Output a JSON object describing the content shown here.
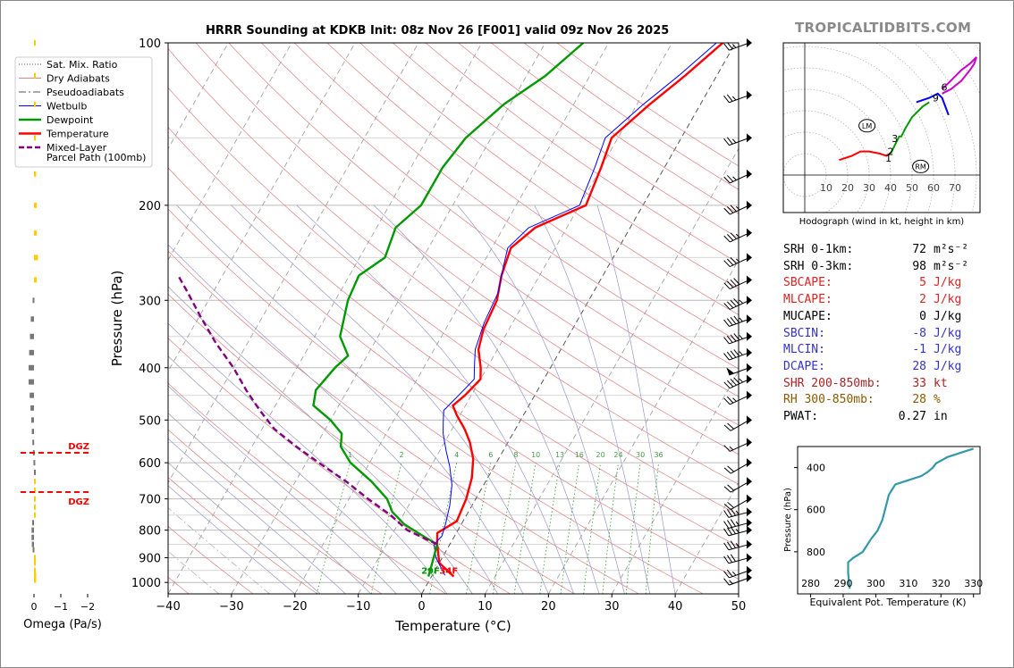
{
  "brand": "TROPICALTIDBITS.COM",
  "title": "HRRR Sounding at KDKB Init: 08z Nov 26 [F001] valid 09z Nov 26 2025",
  "colors": {
    "temperature": "#ff0000",
    "dewpoint": "#009900",
    "wetbulb": "#0000ff",
    "parcel": "#800080",
    "dry_adiabat": "#e08080",
    "moist_adiabat": "#9999cc",
    "mixing_ratio": "#339933",
    "isotherm": "#888888",
    "omega_up": "#ffcc00",
    "omega_down": "#777777",
    "theta_e": "#3399aa",
    "text_red": "#dd2222",
    "text_blue": "#3333cc",
    "text_brown": "#8a5a00"
  },
  "legend": [
    {
      "label": "Sat. Mix. Ratio",
      "style": "dotted",
      "color": "#555555"
    },
    {
      "label": "Dry Adiabats",
      "style": "solid",
      "color": "#e08080"
    },
    {
      "label": "Pseudoadiabats",
      "style": "dashdot",
      "color": "#555555"
    },
    {
      "label": "Wetbulb",
      "style": "solid",
      "color": "#0000ff"
    },
    {
      "label": "Dewpoint",
      "style": "solid",
      "color": "#009900"
    },
    {
      "label": "Temperature",
      "style": "solid",
      "color": "#ff0000"
    },
    {
      "label": "Mixed-Layer\nParcel Path (100mb)",
      "style": "dashed",
      "color": "#800080"
    }
  ],
  "chart_data": [
    {
      "type": "line",
      "name": "skew-t",
      "xlabel": "Temperature (°C)",
      "ylabel": "Pressure (hPa)",
      "xlim": [
        -40,
        50
      ],
      "ylim": [
        1050,
        100
      ],
      "y_scale": "log",
      "x_ticks": [
        -40,
        -30,
        -20,
        -10,
        0,
        10,
        20,
        30,
        40,
        50
      ],
      "y_ticks": [
        100,
        200,
        300,
        400,
        500,
        600,
        700,
        800,
        900,
        1000
      ],
      "series": [
        {
          "name": "Temperature",
          "points": [
            [
              3.5,
              975
            ],
            [
              0,
              920
            ],
            [
              -2,
              850
            ],
            [
              -3,
              810
            ],
            [
              -1,
              770
            ],
            [
              -1.5,
              700
            ],
            [
              -2.5,
              640
            ],
            [
              -4,
              590
            ],
            [
              -6,
              550
            ],
            [
              -8,
              520
            ],
            [
              -10.5,
              490
            ],
            [
              -12,
              470
            ],
            [
              -11,
              450
            ],
            [
              -10,
              420
            ],
            [
              -11,
              400
            ],
            [
              -13,
              370
            ],
            [
              -14,
              340
            ],
            [
              -14.5,
              300
            ],
            [
              -16,
              270
            ],
            [
              -17,
              240
            ],
            [
              -15,
              220
            ],
            [
              -9,
              200
            ],
            [
              -10,
              170
            ],
            [
              -11,
              150
            ],
            [
              -8,
              130
            ],
            [
              -5,
              115
            ],
            [
              -2,
              100
            ]
          ]
        },
        {
          "name": "Wetbulb",
          "points": [
            [
              2,
              970
            ],
            [
              -1,
              900
            ],
            [
              -2.5,
              850
            ],
            [
              -2,
              820
            ],
            [
              -2.5,
              780
            ],
            [
              -3.5,
              720
            ],
            [
              -5,
              660
            ],
            [
              -7,
              610
            ],
            [
              -9,
              570
            ],
            [
              -11,
              530
            ],
            [
              -12,
              505
            ],
            [
              -13,
              480
            ],
            [
              -12,
              450
            ],
            [
              -11,
              420
            ],
            [
              -12,
              400
            ],
            [
              -13.5,
              370
            ],
            [
              -14.5,
              330
            ],
            [
              -15,
              290
            ],
            [
              -16.5,
              260
            ],
            [
              -17.5,
              240
            ],
            [
              -16,
              220
            ],
            [
              -10,
              200
            ],
            [
              -11,
              170
            ],
            [
              -12,
              150
            ],
            [
              -9,
              130
            ],
            [
              -6,
              115
            ],
            [
              -3,
              100
            ]
          ]
        },
        {
          "name": "Dewpoint",
          "points": [
            [
              -0.5,
              975
            ],
            [
              -1,
              930
            ],
            [
              -2,
              850
            ],
            [
              -5,
              820
            ],
            [
              -9,
              780
            ],
            [
              -12,
              740
            ],
            [
              -14,
              700
            ],
            [
              -18,
              650
            ],
            [
              -23,
              600
            ],
            [
              -26,
              560
            ],
            [
              -27,
              530
            ],
            [
              -30,
              500
            ],
            [
              -34,
              470
            ],
            [
              -35,
              440
            ],
            [
              -34,
              400
            ],
            [
              -33,
              380
            ],
            [
              -36,
              350
            ],
            [
              -38,
              300
            ],
            [
              -38.5,
              270
            ],
            [
              -36,
              250
            ],
            [
              -37,
              220
            ],
            [
              -35,
              200
            ],
            [
              -35,
              170
            ],
            [
              -34,
              150
            ],
            [
              -31,
              130
            ],
            [
              -27,
              115
            ],
            [
              -24,
              100
            ]
          ]
        },
        {
          "name": "Mixed-Layer Parcel Path (100mb)",
          "points": [
            [
              -2,
              850
            ],
            [
              -8,
              800
            ],
            [
              -12,
              750
            ],
            [
              -17,
              700
            ],
            [
              -22,
              650
            ],
            [
              -28,
              600
            ],
            [
              -33,
              560
            ],
            [
              -38,
              520
            ],
            [
              -42,
              480
            ],
            [
              -46,
              440
            ],
            [
              -50,
              400
            ],
            [
              -55,
              360
            ],
            [
              -60,
              320
            ],
            [
              -64,
              290
            ],
            [
              -67,
              270
            ]
          ]
        }
      ],
      "mixing_ratio_labels": [
        "1",
        "2",
        "4",
        "6",
        "8",
        "10",
        "13",
        "16",
        "20",
        "24",
        "30",
        "36"
      ],
      "surface_labels": {
        "dewpoint": "29F",
        "temperature": "34F"
      },
      "winds": [
        {
          "p": 980,
          "dir": 250,
          "spd": 15
        },
        {
          "p": 950,
          "dir": 250,
          "spd": 25
        },
        {
          "p": 900,
          "dir": 255,
          "spd": 30
        },
        {
          "p": 850,
          "dir": 255,
          "spd": 35
        },
        {
          "p": 800,
          "dir": 255,
          "spd": 35
        },
        {
          "p": 775,
          "dir": 255,
          "spd": 35
        },
        {
          "p": 740,
          "dir": 255,
          "spd": 35
        },
        {
          "p": 700,
          "dir": 240,
          "spd": 20
        },
        {
          "p": 650,
          "dir": 240,
          "spd": 20
        },
        {
          "p": 600,
          "dir": 240,
          "spd": 20
        },
        {
          "p": 550,
          "dir": 245,
          "spd": 15
        },
        {
          "p": 500,
          "dir": 240,
          "spd": 20
        },
        {
          "p": 450,
          "dir": 245,
          "spd": 25
        },
        {
          "p": 420,
          "dir": 245,
          "spd": 45
        },
        {
          "p": 400,
          "dir": 250,
          "spd": 50
        },
        {
          "p": 375,
          "dir": 250,
          "spd": 45
        },
        {
          "p": 350,
          "dir": 250,
          "spd": 45
        },
        {
          "p": 325,
          "dir": 250,
          "spd": 45
        },
        {
          "p": 300,
          "dir": 245,
          "spd": 45
        },
        {
          "p": 275,
          "dir": 245,
          "spd": 40
        },
        {
          "p": 250,
          "dir": 245,
          "spd": 35
        },
        {
          "p": 225,
          "dir": 245,
          "spd": 35
        },
        {
          "p": 200,
          "dir": 245,
          "spd": 35
        },
        {
          "p": 175,
          "dir": 245,
          "spd": 25
        },
        {
          "p": 150,
          "dir": 250,
          "spd": 25
        },
        {
          "p": 125,
          "dir": 250,
          "spd": 25
        },
        {
          "p": 100,
          "dir": 250,
          "spd": 25
        }
      ]
    },
    {
      "type": "line",
      "name": "omega",
      "xlabel": "Omega (Pa/s)",
      "xlim": [
        0.3,
        -2.5
      ],
      "x_ticks": [
        0,
        -1,
        -2
      ],
      "x_tick_labels": [
        "0",
        "−1",
        "−2"
      ],
      "values": [
        {
          "p": 990,
          "v": -0.08
        },
        {
          "p": 970,
          "v": -0.08
        },
        {
          "p": 950,
          "v": -0.06
        },
        {
          "p": 920,
          "v": -0.04
        },
        {
          "p": 900,
          "v": -0.03
        },
        {
          "p": 870,
          "v": 0.05
        },
        {
          "p": 850,
          "v": 0.08
        },
        {
          "p": 825,
          "v": 0.09
        },
        {
          "p": 800,
          "v": 0.09
        },
        {
          "p": 775,
          "v": 0.07
        },
        {
          "p": 750,
          "v": -0.03
        },
        {
          "p": 725,
          "v": -0.02
        },
        {
          "p": 700,
          "v": -0.02
        },
        {
          "p": 675,
          "v": -0.01
        },
        {
          "p": 650,
          "v": -0.01
        },
        {
          "p": 625,
          "v": 0.0
        },
        {
          "p": 600,
          "v": 0.02
        },
        {
          "p": 575,
          "v": 0.04
        },
        {
          "p": 550,
          "v": 0.06
        },
        {
          "p": 525,
          "v": 0.08
        },
        {
          "p": 500,
          "v": 0.1
        },
        {
          "p": 475,
          "v": 0.13
        },
        {
          "p": 450,
          "v": 0.16
        },
        {
          "p": 425,
          "v": 0.2
        },
        {
          "p": 400,
          "v": 0.2
        },
        {
          "p": 375,
          "v": 0.18
        },
        {
          "p": 350,
          "v": 0.15
        },
        {
          "p": 325,
          "v": 0.12
        },
        {
          "p": 300,
          "v": 0.05
        },
        {
          "p": 275,
          "v": -0.1
        },
        {
          "p": 250,
          "v": -0.15
        },
        {
          "p": 225,
          "v": -0.1
        },
        {
          "p": 200,
          "v": -0.1
        },
        {
          "p": 175,
          "v": -0.08
        },
        {
          "p": 150,
          "v": -0.06
        },
        {
          "p": 130,
          "v": -0.03
        },
        {
          "p": 115,
          "v": -0.02
        },
        {
          "p": 100,
          "v": -0.01
        }
      ],
      "dgz_levels": [
        {
          "p": 575,
          "label": "DGZ"
        },
        {
          "p": 680,
          "label": "DGZ"
        }
      ]
    },
    {
      "type": "line",
      "name": "hodograph",
      "caption": "Hodograph (wind in kt, height in km)",
      "x_ticks": [
        10,
        20,
        30,
        40,
        50,
        60,
        70
      ],
      "height_labels": [
        {
          "label": "1",
          "u": 39,
          "v": 8
        },
        {
          "label": "2",
          "u": 40,
          "v": 11
        },
        {
          "label": "3",
          "u": 42,
          "v": 17
        },
        {
          "label": "6",
          "u": 65,
          "v": 41
        },
        {
          "label": "9",
          "u": 61,
          "v": 36
        }
      ],
      "markers": [
        {
          "label": "LM",
          "u": 29,
          "v": 23
        },
        {
          "label": "RM",
          "u": 54,
          "v": 4
        }
      ],
      "series": [
        {
          "color": "#ff0000",
          "points": [
            [
              16,
              7
            ],
            [
              22,
              9
            ],
            [
              26,
              11
            ],
            [
              30,
              11
            ],
            [
              35,
              10
            ],
            [
              38,
              9
            ],
            [
              40,
              10
            ]
          ]
        },
        {
          "color": "#009900",
          "points": [
            [
              40,
              10
            ],
            [
              42,
              14
            ],
            [
              44,
              18
            ],
            [
              45,
              18
            ],
            [
              47,
              22
            ],
            [
              50,
              27
            ],
            [
              55,
              32
            ],
            [
              58,
              34
            ]
          ]
        },
        {
          "color": "#0000ff",
          "points": [
            [
              52,
              34
            ],
            [
              58,
              36
            ],
            [
              62,
              38
            ],
            [
              64,
              36
            ],
            [
              67,
              28
            ]
          ]
        },
        {
          "color": "#cc00cc",
          "points": [
            [
              64,
              38
            ],
            [
              68,
              40
            ],
            [
              73,
              44
            ],
            [
              77,
              49
            ],
            [
              79,
              52
            ],
            [
              80,
              55
            ],
            [
              77,
              52
            ],
            [
              73,
              49
            ],
            [
              68,
              44
            ],
            [
              64,
              40
            ]
          ]
        }
      ]
    },
    {
      "type": "line",
      "name": "theta-e",
      "xlabel": "Equivalent Pot. Temperature (K)",
      "ylabel": "Pressure (hPa)",
      "xlim": [
        276,
        332
      ],
      "ylim": [
        1000,
        300
      ],
      "x_ticks": [
        280,
        290,
        300,
        310,
        320,
        330
      ],
      "y_ticks": [
        400,
        600,
        800
      ],
      "points": [
        [
          292,
          975
        ],
        [
          291.5,
          900
        ],
        [
          291.5,
          850
        ],
        [
          293,
          830
        ],
        [
          296,
          800
        ],
        [
          298.5,
          740
        ],
        [
          300.5,
          700
        ],
        [
          302,
          650
        ],
        [
          303,
          590
        ],
        [
          304,
          530
        ],
        [
          306,
          480
        ],
        [
          310,
          460
        ],
        [
          314,
          440
        ],
        [
          316,
          420
        ],
        [
          317.5,
          400
        ],
        [
          318.5,
          380
        ],
        [
          322,
          350
        ],
        [
          328,
          320
        ],
        [
          330,
          310
        ]
      ]
    }
  ],
  "stats": [
    {
      "name": "SRH 0-1km:",
      "value": "72",
      "unit": "m²s⁻²",
      "color": "#000000"
    },
    {
      "name": "SRH 0-3km:",
      "value": "98",
      "unit": "m²s⁻²",
      "color": "#000000"
    },
    {
      "name": "SBCAPE:",
      "value": "5",
      "unit": "J/kg",
      "color": "#dd2222"
    },
    {
      "name": "MLCAPE:",
      "value": "2",
      "unit": "J/kg",
      "color": "#dd2222"
    },
    {
      "name": "MUCAPE:",
      "value": "0",
      "unit": "J/kg",
      "color": "#000000"
    },
    {
      "name": "SBCIN:",
      "value": "-8",
      "unit": "J/kg",
      "color": "#3333cc"
    },
    {
      "name": "MLCIN:",
      "value": "-1",
      "unit": "J/kg",
      "color": "#3333cc"
    },
    {
      "name": "DCAPE:",
      "value": "28",
      "unit": "J/kg",
      "color": "#3333cc"
    },
    {
      "name": "SHR 200-850mb:",
      "value": "33",
      "unit": "kt",
      "color": "#aa2222"
    },
    {
      "name": "RH 300-850mb:",
      "value": "28",
      "unit": "%",
      "color": "#8a5a00"
    },
    {
      "name": "PWAT:",
      "value": "0.27",
      "unit": "in",
      "color": "#000000"
    }
  ]
}
